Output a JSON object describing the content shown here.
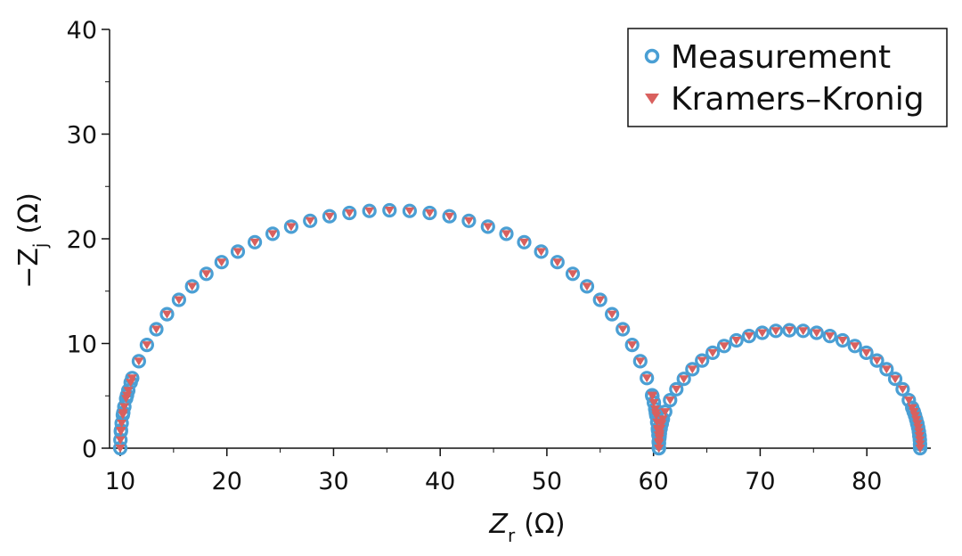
{
  "chart_data": {
    "type": "scatter",
    "title": "",
    "xlabel": {
      "main": "Z",
      "sub": "r",
      "unit": "(Ω)"
    },
    "ylabel": {
      "prefix": "−Z",
      "sub": "j",
      "unit": "(Ω)"
    },
    "xlim": [
      9,
      86
    ],
    "ylim": [
      0,
      40
    ],
    "xticks": [
      "10",
      "20",
      "30",
      "40",
      "50",
      "60",
      "70",
      "80"
    ],
    "yticks": [
      "0",
      "10",
      "20",
      "30",
      "40"
    ],
    "grid": false,
    "legend_position": "top-right",
    "arcs": [
      {
        "center": 35.25,
        "radius": 25.25,
        "depression": 0.9,
        "start": 10.0,
        "end": 60.5
      },
      {
        "center": 72.75,
        "radius": 12.25,
        "depression": 0.92,
        "start": 60.5,
        "end": 85.0
      }
    ],
    "series": [
      {
        "name": "Measurement",
        "marker": "circle-open",
        "color": "#4a9fd4"
      },
      {
        "name": "Kramers–Kronig",
        "marker": "triangle-down",
        "color": "#d9605e"
      }
    ]
  }
}
